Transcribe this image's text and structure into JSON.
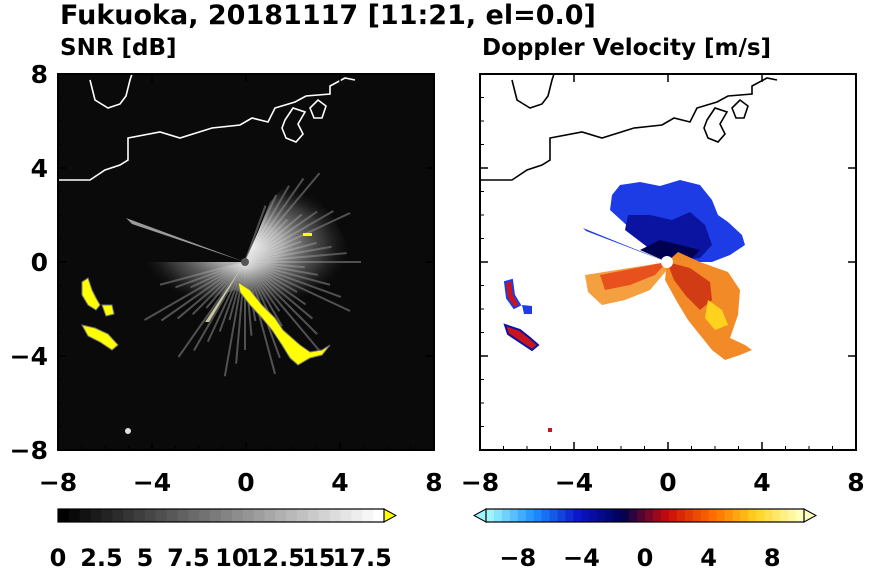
{
  "title": "Fukuoka, 20181117 [11:21, el=0.0]",
  "chart_data": [
    {
      "type": "heatmap",
      "title": "SNR [dB]",
      "xlim": [
        -8,
        8
      ],
      "ylim": [
        -8,
        8
      ],
      "x_ticks": [
        "−8",
        "−4",
        "0",
        "4",
        "8"
      ],
      "y_ticks": [
        "8",
        "4",
        "0",
        "−4",
        "−8"
      ],
      "radar_center": [
        0,
        0
      ],
      "echo_max_range": 5.3,
      "highlight_color": "#ffff00",
      "colorbar": {
        "min": 0,
        "max": 18.75,
        "extend": "max",
        "colors": [
          "#000000",
          "#ffffff"
        ],
        "tick_labels": [
          "0",
          "2.5",
          "5",
          "7.5",
          "10",
          "12.5",
          "15",
          "17.5"
        ]
      }
    },
    {
      "type": "heatmap",
      "title": "Doppler Velocity [m/s]",
      "xlim": [
        -8,
        8
      ],
      "ylim": [
        -8,
        8
      ],
      "x_ticks": [
        "−8",
        "−4",
        "0",
        "4",
        "8"
      ],
      "y_ticks": [
        "8",
        "4",
        "0",
        "−4",
        "−8"
      ],
      "radar_center": [
        0,
        0
      ],
      "colorbar": {
        "min": -10,
        "max": 10,
        "extend": "both",
        "colors": [
          "#9ff5ff",
          "#1e8fff",
          "#0a14c8",
          "#000050",
          "#c80a0a",
          "#ff6a00",
          "#ffd21e",
          "#ffffbe"
        ],
        "tick_labels": [
          "−8",
          "−4",
          "0",
          "4",
          "8"
        ]
      }
    }
  ]
}
